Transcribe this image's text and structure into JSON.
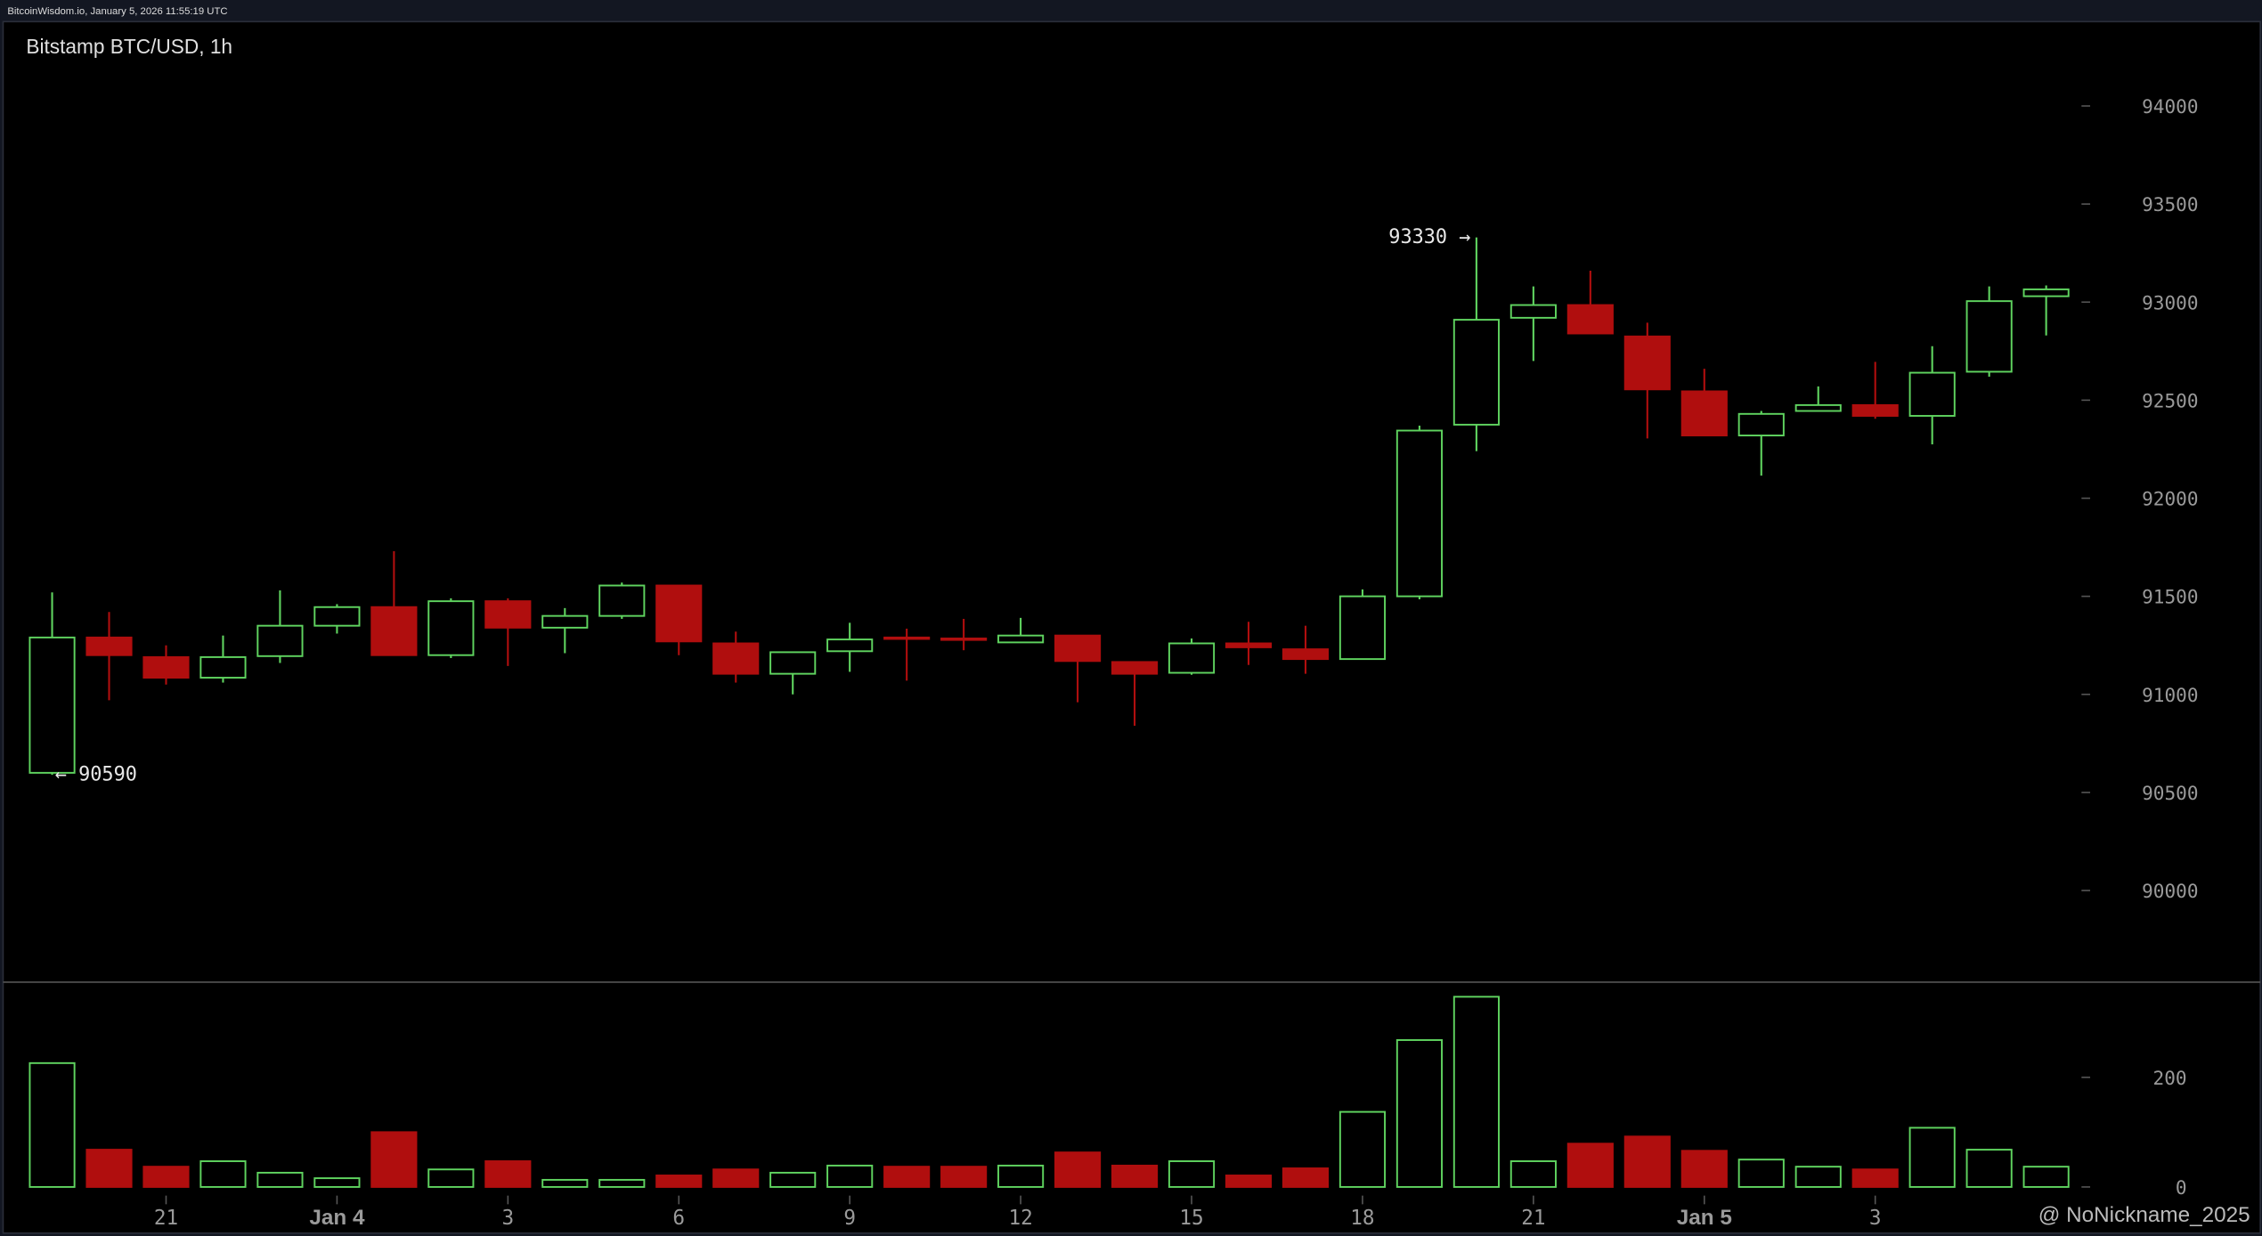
{
  "header": "BitcoinWisdom.io, January 5, 2026 11:55:19 UTC",
  "watermark": "@ NoNickname_2025",
  "chart_data": {
    "type": "candlestick",
    "title": "Bitstamp BTC/USD, 1h",
    "categories": [
      null,
      null,
      "21",
      null,
      null,
      "Jan 4",
      null,
      null,
      "3",
      null,
      null,
      "6",
      null,
      null,
      "9",
      null,
      null,
      "12",
      null,
      null,
      "15",
      null,
      null,
      "18",
      null,
      null,
      "21",
      null,
      null,
      "Jan 5",
      null,
      null,
      "3",
      null,
      null,
      null
    ],
    "open": [
      90600,
      91290,
      91190,
      91085,
      91195,
      91350,
      91445,
      91200,
      91475,
      91340,
      91400,
      91555,
      91260,
      91105,
      91220,
      91290,
      91285,
      91265,
      91300,
      91165,
      91110,
      91260,
      91230,
      91180,
      91500,
      92375,
      92920,
      92985,
      92825,
      92545,
      92320,
      92445,
      92475,
      92420,
      92645,
      93030
    ],
    "high": [
      91520,
      91420,
      91250,
      91300,
      91530,
      91460,
      91730,
      91490,
      91490,
      91440,
      91570,
      91555,
      91320,
      91215,
      91365,
      91335,
      91385,
      91390,
      91300,
      91165,
      91285,
      91370,
      91350,
      91535,
      92370,
      93330,
      93080,
      93160,
      92895,
      92660,
      92445,
      92570,
      92695,
      92775,
      93080,
      93085
    ],
    "low": [
      90590,
      90970,
      91050,
      91060,
      91160,
      91310,
      91200,
      91185,
      91145,
      91210,
      91385,
      91200,
      91060,
      91000,
      91115,
      91070,
      91225,
      91265,
      90960,
      90840,
      91100,
      91150,
      91105,
      91180,
      91485,
      92240,
      92700,
      92840,
      92305,
      92320,
      92115,
      92445,
      92405,
      92275,
      92620,
      92830
    ],
    "close": [
      91290,
      91200,
      91085,
      91190,
      91350,
      91445,
      91200,
      91475,
      91340,
      91400,
      91555,
      91270,
      91105,
      91215,
      91280,
      91285,
      91280,
      91300,
      91170,
      91105,
      91260,
      91240,
      91180,
      91500,
      92345,
      92910,
      92985,
      92840,
      92555,
      92320,
      92430,
      92475,
      92420,
      92640,
      93005,
      93065
    ],
    "volume": [
      226,
      68,
      37,
      47,
      26,
      16,
      100,
      32,
      47,
      13,
      13,
      21,
      32,
      26,
      39,
      37,
      37,
      39,
      63,
      39,
      47,
      21,
      34,
      137,
      268,
      347,
      47,
      79,
      92,
      66,
      50,
      37,
      32,
      108,
      68,
      37
    ],
    "up_color": "#5fd35f",
    "down_color": "#b00e0e",
    "ylim": [
      89540,
      94430
    ],
    "yticks": [
      90000,
      90500,
      91000,
      91500,
      92000,
      92500,
      93000,
      93500,
      94000
    ],
    "volume_ylim": [
      0,
      371
    ],
    "volume_yticks": [
      0,
      200
    ],
    "annotations": [
      {
        "text": "93330 →",
        "value": 93330,
        "index": 25
      },
      {
        "text": "← 90590",
        "value": 90590,
        "index": 0
      }
    ]
  }
}
